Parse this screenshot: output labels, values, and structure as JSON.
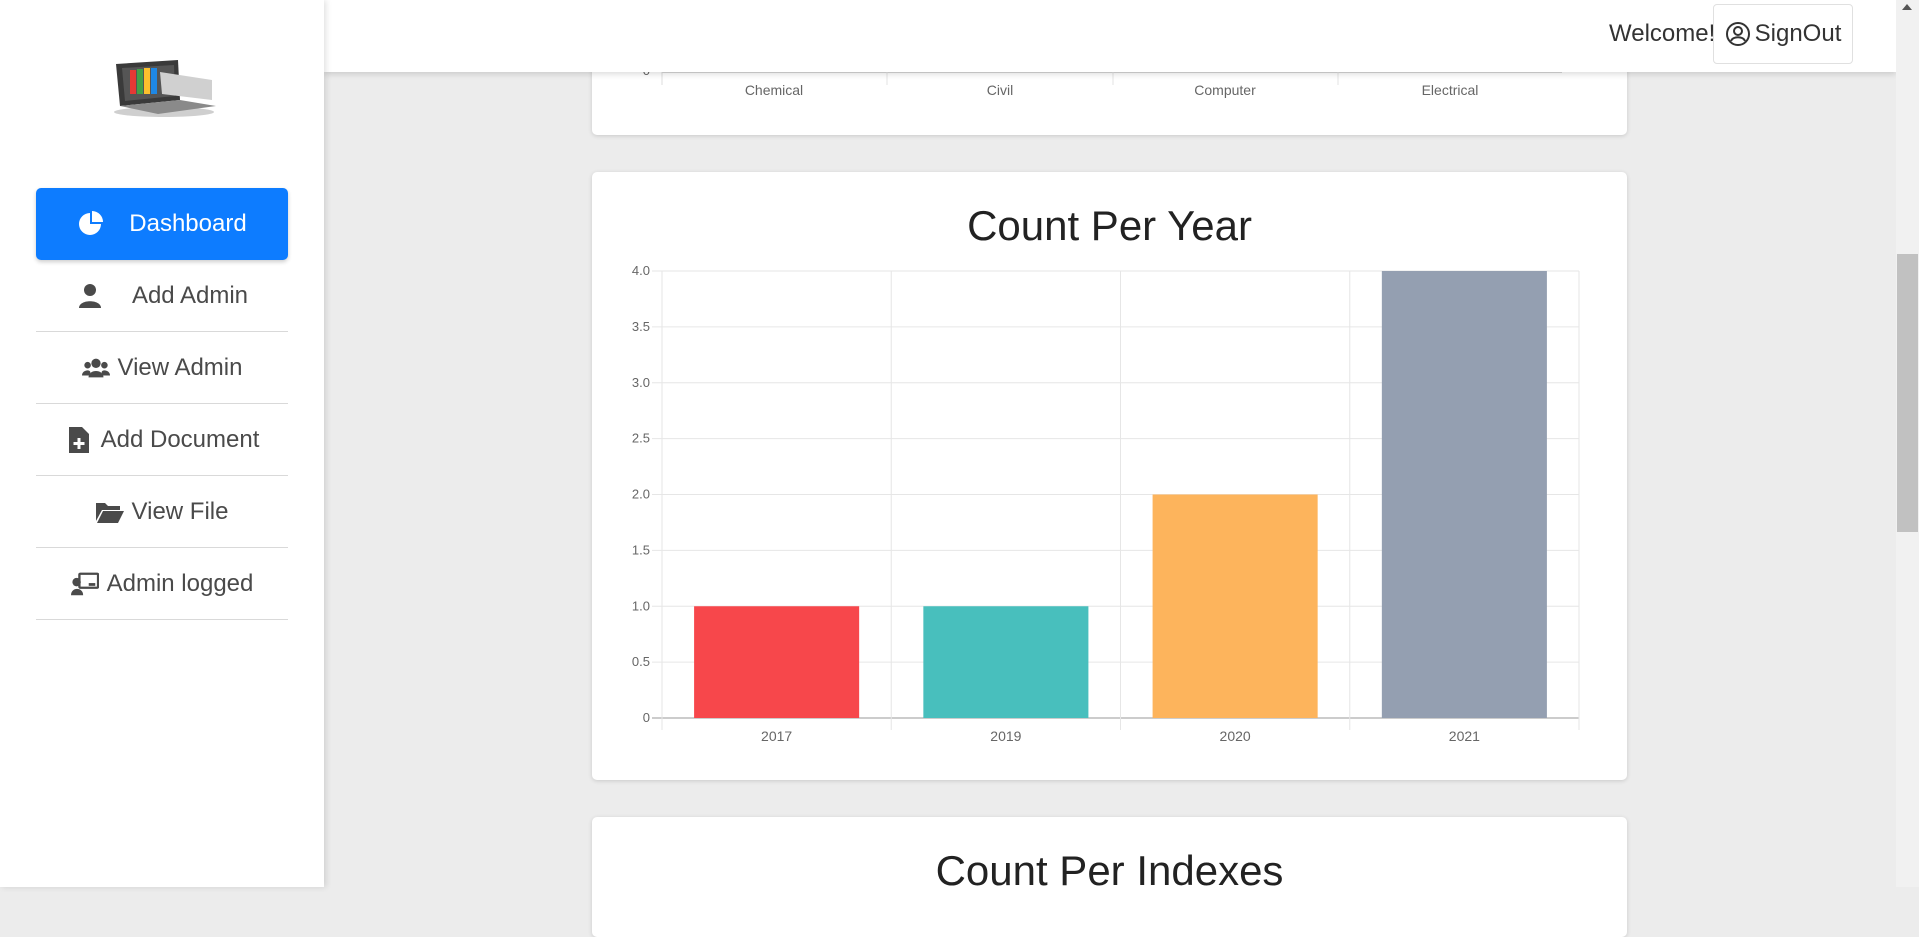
{
  "header": {
    "welcome": "Welcome!",
    "signout_label": "SignOut"
  },
  "sidebar": {
    "items": [
      {
        "label": "Dashboard",
        "icon": "chart-pie-icon"
      },
      {
        "label": "Add Admin",
        "icon": "user-icon"
      },
      {
        "label": "View Admin",
        "icon": "users-icon"
      },
      {
        "label": "Add Document",
        "icon": "file-plus-icon"
      },
      {
        "label": "View File",
        "icon": "folder-open-icon"
      },
      {
        "label": "Admin logged",
        "icon": "chalkboard-user-icon"
      }
    ]
  },
  "top_chart": {
    "tick_label": "0",
    "categories": [
      "Chemical",
      "Civil",
      "Computer",
      "Electrical"
    ]
  },
  "count_per_year": {
    "title": "Count Per Year"
  },
  "count_per_indexes": {
    "title": "Count Per Indexes"
  },
  "chart_data": {
    "type": "bar",
    "title": "Count Per Year",
    "categories": [
      "2017",
      "2019",
      "2020",
      "2021"
    ],
    "values": [
      1,
      1,
      2,
      4
    ],
    "colors": [
      "#f7474b",
      "#48bfbd",
      "#fdb45c",
      "#949fb1"
    ],
    "ylim": [
      0,
      4
    ],
    "yticks": [
      "0",
      "0.5",
      "1.0",
      "1.5",
      "2.0",
      "2.5",
      "3.0",
      "3.5",
      "4.0"
    ],
    "grid": true
  }
}
